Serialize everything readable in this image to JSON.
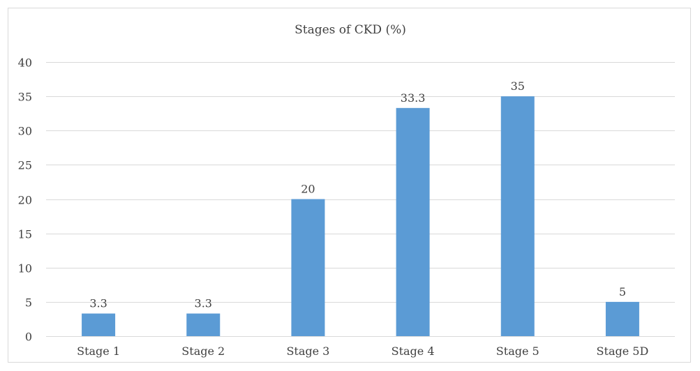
{
  "chart_data": {
    "type": "bar",
    "title": "Stages of CKD (%)",
    "xlabel": "",
    "ylabel": "",
    "categories": [
      "Stage 1",
      "Stage 2",
      "Stage 3",
      "Stage 4",
      "Stage 5",
      "Stage 5D"
    ],
    "values": [
      3.3,
      3.3,
      20,
      33.3,
      35,
      5
    ],
    "data_labels": [
      "3.3",
      "3.3",
      "20",
      "33.3",
      "35",
      "5"
    ],
    "ylim": [
      0,
      40
    ],
    "yticks": [
      "0",
      "5",
      "10",
      "15",
      "20",
      "25",
      "30",
      "35",
      "40"
    ],
    "yticks_values": [
      0,
      5,
      10,
      15,
      20,
      25,
      30,
      35,
      40
    ],
    "grid": true,
    "legend": "none",
    "bar_color": "#5b9bd5"
  }
}
